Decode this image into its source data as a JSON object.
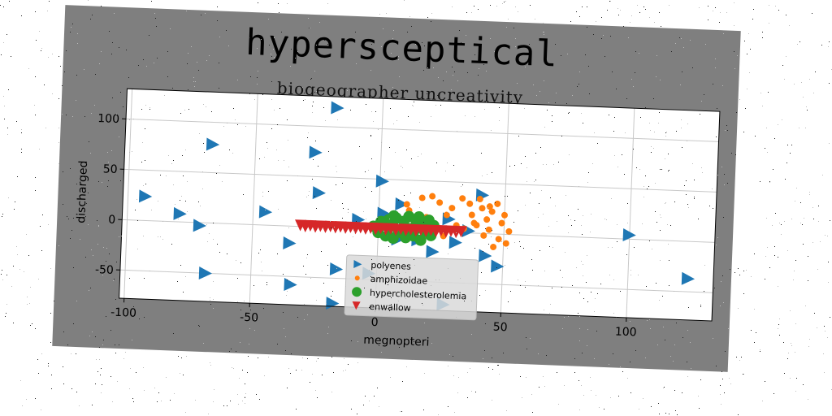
{
  "chart_data": {
    "type": "scatter",
    "title": "hypersceptical",
    "subtitle": "biogeographer uncreativity",
    "xlabel": "megnopteri",
    "ylabel": "discharged",
    "xlim": [
      -102,
      134
    ],
    "ylim": [
      -78,
      130
    ],
    "xticks": [
      -100,
      -50,
      0,
      50,
      100
    ],
    "yticks": [
      -50,
      0,
      50,
      100
    ],
    "grid": true,
    "legend_position": "lower-center",
    "series": [
      {
        "name": "polyenes",
        "marker": "triangle-right",
        "color": "#1f77b4",
        "points": [
          [
            -93,
            24
          ],
          [
            -79,
            8
          ],
          [
            -71,
            -3
          ],
          [
            -68,
            -50
          ],
          [
            -67,
            78
          ],
          [
            -45,
            13
          ],
          [
            -35,
            -17
          ],
          [
            -34,
            -58
          ],
          [
            -26,
            74
          ],
          [
            -24,
            34
          ],
          [
            -18,
            119
          ],
          [
            -16,
            -41
          ],
          [
            -17,
            -75
          ],
          [
            -8,
            9
          ],
          [
            -3,
            -44
          ],
          [
            1,
            48
          ],
          [
            2,
            16
          ],
          [
            8,
            -9
          ],
          [
            9,
            26
          ],
          [
            16,
            -9
          ],
          [
            22,
            -20
          ],
          [
            28,
            13
          ],
          [
            27,
            -72
          ],
          [
            31,
            -10
          ],
          [
            36,
            2
          ],
          [
            41,
            38
          ],
          [
            43,
            -22
          ],
          [
            48,
            -32
          ],
          [
            100,
            4
          ],
          [
            124,
            -37
          ]
        ]
      },
      {
        "name": "amphizoidae",
        "marker": "circle-small",
        "color": "#ff7f0e",
        "points": [
          [
            11,
            26
          ],
          [
            12,
            20
          ],
          [
            17,
            33
          ],
          [
            21,
            35
          ],
          [
            19,
            14
          ],
          [
            24,
            29
          ],
          [
            27,
            17
          ],
          [
            29,
            24
          ],
          [
            33,
            34
          ],
          [
            31,
            7
          ],
          [
            36,
            29
          ],
          [
            37,
            18
          ],
          [
            39,
            8
          ],
          [
            41,
            25
          ],
          [
            43,
            14
          ],
          [
            44,
            4
          ],
          [
            45,
            22
          ],
          [
            47,
            30
          ],
          [
            48,
            -5
          ],
          [
            49,
            11
          ],
          [
            50,
            19
          ],
          [
            51,
            -9
          ],
          [
            52,
            3
          ],
          [
            46,
            -13
          ],
          [
            42,
            -2
          ],
          [
            38,
            10
          ],
          [
            34,
            4
          ],
          [
            26,
            -4
          ],
          [
            40,
            34
          ],
          [
            44,
            27
          ]
        ]
      },
      {
        "name": "hypercholesterolemia",
        "marker": "circle",
        "color": "#2ca02c",
        "points": [
          [
            -2,
            3
          ],
          [
            0,
            -3
          ],
          [
            1,
            8
          ],
          [
            3,
            -6
          ],
          [
            4,
            10
          ],
          [
            5,
            2
          ],
          [
            6,
            -8
          ],
          [
            7,
            12
          ],
          [
            8,
            5
          ],
          [
            9,
            -2
          ],
          [
            10,
            9
          ],
          [
            11,
            -7
          ],
          [
            12,
            14
          ],
          [
            13,
            2
          ],
          [
            14,
            -5
          ],
          [
            15,
            10
          ],
          [
            16,
            3
          ],
          [
            17,
            -9
          ],
          [
            18,
            7
          ],
          [
            19,
            0
          ],
          [
            20,
            11
          ],
          [
            21,
            -4
          ],
          [
            22,
            6
          ],
          [
            6,
            14
          ],
          [
            16,
            14
          ]
        ]
      },
      {
        "name": "enwallow",
        "marker": "triangle-down",
        "color": "#d62728",
        "points": [
          [
            -31,
            1
          ],
          [
            -29,
            0
          ],
          [
            -27,
            1
          ],
          [
            -25,
            0
          ],
          [
            -23,
            1
          ],
          [
            -21,
            0
          ],
          [
            -19,
            1
          ],
          [
            -17,
            0
          ],
          [
            -15,
            1
          ],
          [
            -13,
            0
          ],
          [
            -11,
            1
          ],
          [
            -9,
            0
          ],
          [
            -7,
            1
          ],
          [
            -5,
            0
          ],
          [
            -3,
            1
          ],
          [
            -1,
            0
          ],
          [
            1,
            1
          ],
          [
            3,
            0
          ],
          [
            5,
            1
          ],
          [
            7,
            0
          ],
          [
            9,
            1
          ],
          [
            11,
            0
          ],
          [
            13,
            1
          ],
          [
            15,
            0
          ],
          [
            17,
            1
          ],
          [
            19,
            0
          ],
          [
            21,
            1
          ],
          [
            23,
            0
          ],
          [
            25,
            1
          ],
          [
            27,
            0
          ],
          [
            29,
            1
          ],
          [
            31,
            0
          ],
          [
            33,
            1
          ]
        ]
      }
    ]
  }
}
